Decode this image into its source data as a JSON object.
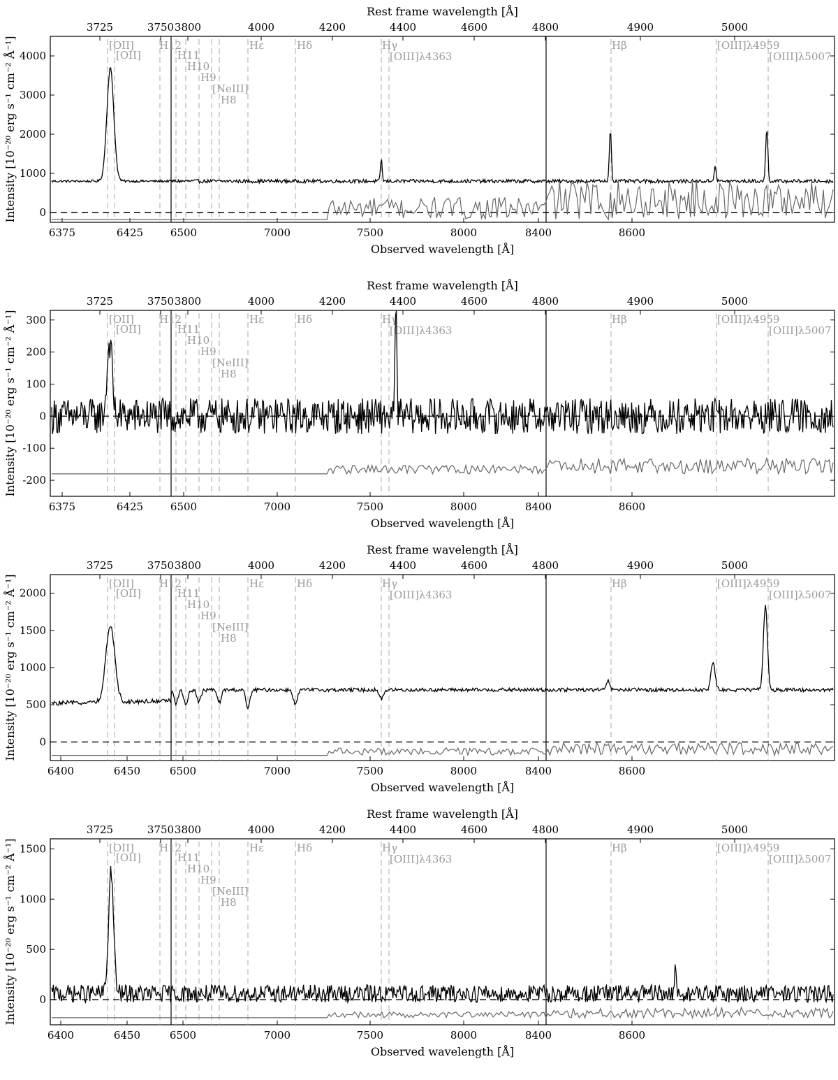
{
  "figure": {
    "top_axis_label": "Rest frame wavelength [Å]",
    "bottom_axis_label": "Observed wavelength [Å]",
    "y_axis_label": "Intensity [10⁻²⁰ erg s⁻¹ cm⁻² Å⁻¹]",
    "rest_ticks": [
      "3725",
      "3750",
      "3800",
      "4000",
      "4200",
      "4400",
      "4600",
      "4800",
      "4900",
      "5000"
    ],
    "line_labels": [
      "[OII]",
      "[OII]",
      "H12",
      "H11",
      "H10",
      "H9",
      "[NeIII]",
      "H8",
      "Hε",
      "Hδ",
      "Hγ",
      "[OIII]λ4363",
      "Hβ",
      "[OIII]λ4959",
      "[OIII]λ5007"
    ],
    "colors": {
      "spectrum": "#000000",
      "noise": "#666666",
      "line_markers": "#aaaaaa",
      "text_markers": "#9a9a9a"
    }
  },
  "chart_data": [
    {
      "type": "line",
      "panel": 1,
      "x_unit": "observed wavelength [Å]",
      "observed_ticks": [
        "6375",
        "6425",
        "6500",
        "7000",
        "7500",
        "8000",
        "8400",
        "8600"
      ],
      "ylim": [
        -250,
        4500
      ],
      "y_ticks": [
        0,
        1000,
        2000,
        3000,
        4000
      ],
      "continuum": 800,
      "noise_level": -180,
      "emission_peaks": [
        {
          "line": "[OII]",
          "peak": 3700
        },
        {
          "line": "Hγ",
          "peak": 1400
        },
        {
          "line": "Hβ",
          "peak": 2150
        },
        {
          "line": "[OIII]λ4959",
          "peak": 1200
        },
        {
          "line": "[OIII]λ5007",
          "peak": 2150
        }
      ],
      "series": [
        {
          "values": "spectrum"
        },
        {
          "values": "noise"
        }
      ]
    },
    {
      "type": "line",
      "panel": 2,
      "x_unit": "observed wavelength [Å]",
      "observed_ticks": [
        "6375",
        "6425",
        "6500",
        "7000",
        "7500",
        "8000",
        "8400",
        "8600"
      ],
      "ylim": [
        -250,
        330
      ],
      "y_ticks": [
        -200,
        -100,
        0,
        100,
        200,
        300
      ],
      "continuum": 0,
      "noise_level": -180,
      "emission_peaks": [
        {
          "line": "[OII]",
          "peak": 235
        },
        {
          "line": "[OIII]λ4363",
          "peak": 305
        }
      ],
      "series": [
        {
          "values": "spectrum"
        },
        {
          "values": "noise"
        }
      ]
    },
    {
      "type": "line",
      "panel": 3,
      "x_unit": "observed wavelength [Å]",
      "observed_ticks": [
        "6400",
        "6450",
        "6500",
        "7000",
        "7500",
        "8000",
        "8400",
        "8600"
      ],
      "ylim": [
        -250,
        2250
      ],
      "y_ticks": [
        0,
        500,
        1000,
        1500,
        2000
      ],
      "continuum": 700,
      "noise_level": -180,
      "emission_peaks": [
        {
          "line": "[OII]",
          "peak": 1730
        },
        {
          "line": "Hβ",
          "peak": 830
        },
        {
          "line": "[OIII]λ4959",
          "peak": 1080
        },
        {
          "line": "[OIII]λ5007",
          "peak": 1840
        }
      ],
      "series": [
        {
          "values": "spectrum"
        },
        {
          "values": "noise"
        }
      ]
    },
    {
      "type": "line",
      "panel": 4,
      "x_unit": "observed wavelength [Å]",
      "observed_ticks": [
        "6400",
        "6450",
        "6500",
        "7000",
        "7500",
        "8000",
        "8400",
        "8600"
      ],
      "ylim": [
        -250,
        1600
      ],
      "y_ticks": [
        0,
        500,
        1000,
        1500
      ],
      "continuum": 60,
      "noise_level": -180,
      "emission_peaks": [
        {
          "line": "[OII]",
          "peak": 1290
        },
        {
          "line": "unlabeled",
          "peak": 270
        }
      ],
      "series": [
        {
          "values": "spectrum"
        },
        {
          "values": "noise"
        }
      ]
    }
  ]
}
